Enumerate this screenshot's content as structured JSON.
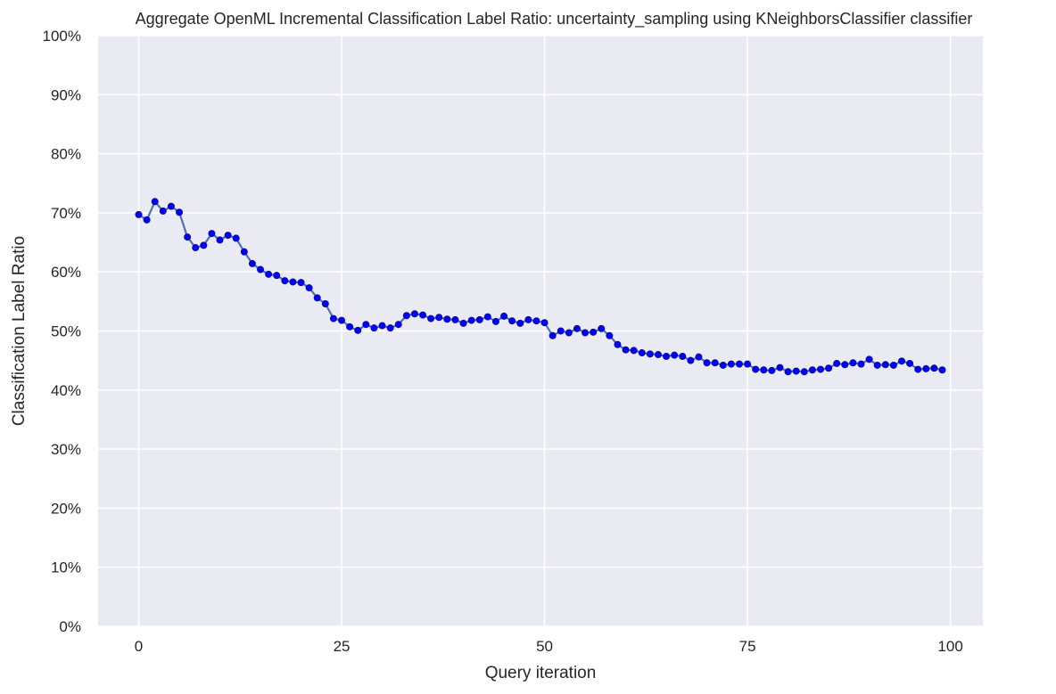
{
  "chart_data": {
    "type": "line",
    "title": "Aggregate OpenML Incremental Classification Label Ratio: uncertainty_sampling using KNeighborsClassifier classifier",
    "xlabel": "Query iteration",
    "ylabel": "Classification Label Ratio",
    "xlim": [
      -5,
      104
    ],
    "ylim": [
      0,
      1
    ],
    "x_ticks": [
      0,
      25,
      50,
      75,
      100
    ],
    "y_ticks": [
      0,
      0.1,
      0.2,
      0.3,
      0.4,
      0.5,
      0.6,
      0.7,
      0.8,
      0.9,
      1.0
    ],
    "y_tick_labels": [
      "0%",
      "10%",
      "20%",
      "30%",
      "40%",
      "50%",
      "60%",
      "70%",
      "80%",
      "90%",
      "100%"
    ],
    "grid": true,
    "colors": {
      "background": "#eaeaf2",
      "grid": "#ffffff",
      "line": "#4c72b0",
      "marker": "#0000ff"
    },
    "series": [
      {
        "values": [
          0.697,
          0.688,
          0.719,
          0.703,
          0.711,
          0.701,
          0.659,
          0.641,
          0.645,
          0.665,
          0.654,
          0.662,
          0.657,
          0.634,
          0.614,
          0.604,
          0.596,
          0.594,
          0.585,
          0.583,
          0.582,
          0.573,
          0.556,
          0.546,
          0.521,
          0.518,
          0.507,
          0.501,
          0.511,
          0.505,
          0.509,
          0.505,
          0.511,
          0.526,
          0.529,
          0.527,
          0.521,
          0.523,
          0.52,
          0.519,
          0.513,
          0.518,
          0.519,
          0.524,
          0.516,
          0.525,
          0.517,
          0.513,
          0.519,
          0.517,
          0.514,
          0.492,
          0.5,
          0.497,
          0.504,
          0.497,
          0.498,
          0.504,
          0.492,
          0.477,
          0.468,
          0.467,
          0.463,
          0.461,
          0.46,
          0.457,
          0.459,
          0.457,
          0.45,
          0.456,
          0.446,
          0.446,
          0.442,
          0.444,
          0.444,
          0.444,
          0.435,
          0.434,
          0.433,
          0.438,
          0.431,
          0.432,
          0.431,
          0.434,
          0.435,
          0.437,
          0.445,
          0.443,
          0.446,
          0.444,
          0.452,
          0.442,
          0.443,
          0.442,
          0.449,
          0.445,
          0.435,
          0.436,
          0.437,
          0.434
        ]
      }
    ]
  }
}
